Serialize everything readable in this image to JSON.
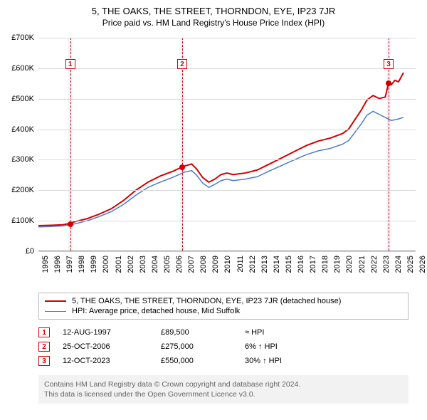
{
  "title": "5, THE OAKS, THE STREET, THORNDON, EYE, IP23 7JR",
  "subtitle": "Price paid vs. HM Land Registry's House Price Index (HPI)",
  "chart": {
    "type": "line",
    "background_color": "#ffffff",
    "grid_color": "#d9d9d9",
    "x_years": [
      1995,
      1996,
      1997,
      1998,
      1999,
      2000,
      2001,
      2002,
      2003,
      2004,
      2005,
      2006,
      2007,
      2008,
      2009,
      2010,
      2011,
      2012,
      2013,
      2014,
      2015,
      2016,
      2017,
      2018,
      2019,
      2020,
      2021,
      2022,
      2023,
      2024,
      2025,
      2026
    ],
    "xlim": [
      1995,
      2026
    ],
    "ylim": [
      0,
      700000
    ],
    "ytick_step": 100000,
    "yticks": [
      "£0",
      "£100K",
      "£200K",
      "£300K",
      "£400K",
      "£500K",
      "£600K",
      "£700K"
    ],
    "band_color": "rgba(120,150,200,0.10)",
    "sale_bands": [
      {
        "year": 1997.61,
        "width_years": 0.35
      },
      {
        "year": 2006.82,
        "width_years": 0.35
      },
      {
        "year": 2023.78,
        "width_years": 0.35
      }
    ],
    "series": [
      {
        "name": "price_paid",
        "label": "5, THE OAKS, THE STREET, THORNDON, EYE, IP23 7JR (detached house)",
        "color": "#d00000",
        "line_width": 2,
        "points": [
          [
            1995.0,
            82000
          ],
          [
            1996.0,
            83000
          ],
          [
            1997.0,
            85000
          ],
          [
            1997.61,
            89500
          ],
          [
            1998.0,
            95000
          ],
          [
            1999.0,
            105000
          ],
          [
            2000.0,
            120000
          ],
          [
            2001.0,
            138000
          ],
          [
            2002.0,
            165000
          ],
          [
            2003.0,
            198000
          ],
          [
            2004.0,
            225000
          ],
          [
            2005.0,
            245000
          ],
          [
            2006.0,
            260000
          ],
          [
            2006.82,
            275000
          ],
          [
            2007.0,
            278000
          ],
          [
            2007.6,
            285000
          ],
          [
            2008.0,
            268000
          ],
          [
            2008.5,
            240000
          ],
          [
            2009.0,
            225000
          ],
          [
            2009.5,
            235000
          ],
          [
            2010.0,
            250000
          ],
          [
            2010.5,
            255000
          ],
          [
            2011.0,
            250000
          ],
          [
            2012.0,
            255000
          ],
          [
            2013.0,
            265000
          ],
          [
            2014.0,
            285000
          ],
          [
            2015.0,
            305000
          ],
          [
            2016.0,
            325000
          ],
          [
            2017.0,
            345000
          ],
          [
            2018.0,
            360000
          ],
          [
            2019.0,
            370000
          ],
          [
            2020.0,
            385000
          ],
          [
            2020.5,
            400000
          ],
          [
            2021.0,
            430000
          ],
          [
            2021.5,
            460000
          ],
          [
            2022.0,
            495000
          ],
          [
            2022.5,
            510000
          ],
          [
            2023.0,
            500000
          ],
          [
            2023.5,
            505000
          ],
          [
            2023.78,
            550000
          ],
          [
            2024.0,
            545000
          ],
          [
            2024.3,
            560000
          ],
          [
            2024.6,
            555000
          ],
          [
            2025.0,
            585000
          ]
        ]
      },
      {
        "name": "hpi",
        "label": "HPI: Average price, detached house, Mid Suffolk",
        "color": "#4a7ec8",
        "line_width": 1.5,
        "points": [
          [
            1995.0,
            78000
          ],
          [
            1996.0,
            79000
          ],
          [
            1997.0,
            81000
          ],
          [
            1998.0,
            88000
          ],
          [
            1999.0,
            98000
          ],
          [
            2000.0,
            112000
          ],
          [
            2001.0,
            128000
          ],
          [
            2002.0,
            152000
          ],
          [
            2003.0,
            182000
          ],
          [
            2004.0,
            208000
          ],
          [
            2005.0,
            225000
          ],
          [
            2006.0,
            240000
          ],
          [
            2007.0,
            258000
          ],
          [
            2007.6,
            263000
          ],
          [
            2008.0,
            248000
          ],
          [
            2008.5,
            222000
          ],
          [
            2009.0,
            208000
          ],
          [
            2009.5,
            218000
          ],
          [
            2010.0,
            230000
          ],
          [
            2010.5,
            235000
          ],
          [
            2011.0,
            230000
          ],
          [
            2012.0,
            235000
          ],
          [
            2013.0,
            243000
          ],
          [
            2014.0,
            262000
          ],
          [
            2015.0,
            280000
          ],
          [
            2016.0,
            298000
          ],
          [
            2017.0,
            315000
          ],
          [
            2018.0,
            328000
          ],
          [
            2019.0,
            336000
          ],
          [
            2020.0,
            350000
          ],
          [
            2020.5,
            362000
          ],
          [
            2021.0,
            388000
          ],
          [
            2021.5,
            415000
          ],
          [
            2022.0,
            445000
          ],
          [
            2022.5,
            458000
          ],
          [
            2023.0,
            448000
          ],
          [
            2023.5,
            438000
          ],
          [
            2024.0,
            428000
          ],
          [
            2024.5,
            432000
          ],
          [
            2025.0,
            438000
          ]
        ]
      }
    ],
    "sale_markers": [
      {
        "n": "1",
        "year": 1997.61,
        "price": 89500,
        "box_y_offset": -40
      },
      {
        "n": "2",
        "year": 2006.82,
        "price": 275000,
        "box_y_offset": -40
      },
      {
        "n": "3",
        "year": 2023.78,
        "price": 550000,
        "box_y_offset": -40
      }
    ]
  },
  "legend": {
    "items": [
      {
        "color": "#d00000",
        "width": 2,
        "key": "chart.series.0.label"
      },
      {
        "color": "#4a7ec8",
        "width": 1.5,
        "key": "chart.series.1.label"
      }
    ]
  },
  "sales": [
    {
      "n": "1",
      "date": "12-AUG-1997",
      "price": "£89,500",
      "rel": "≈ HPI"
    },
    {
      "n": "2",
      "date": "25-OCT-2006",
      "price": "£275,000",
      "rel": "6% ↑ HPI"
    },
    {
      "n": "3",
      "date": "12-OCT-2023",
      "price": "£550,000",
      "rel": "30% ↑ HPI"
    }
  ],
  "footnote": {
    "line1": "Contains HM Land Registry data © Crown copyright and database right 2024.",
    "line2": "This data is licensed under the Open Government Licence v3.0."
  }
}
